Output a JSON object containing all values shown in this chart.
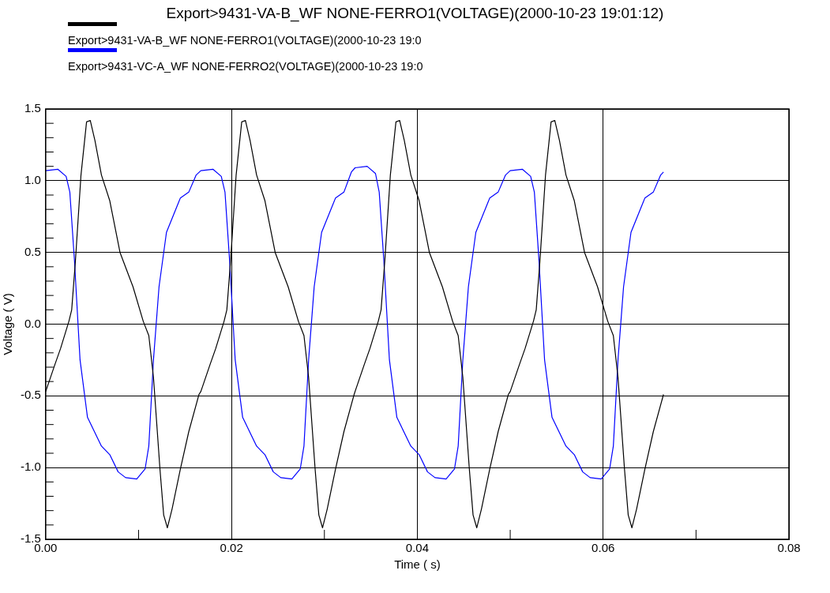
{
  "chart_data": {
    "type": "line",
    "title": "Export>9431-VA-B_WF NONE-FERRO1(VOLTAGE)(2000-10-23 19:01:12)",
    "xlabel": "Time ( s)",
    "ylabel": "Voltage ( V)",
    "xlim": [
      0,
      0.08
    ],
    "xticks": [
      {
        "value": 0,
        "label": "0.00"
      },
      {
        "value": 0.01,
        "label": null
      },
      {
        "value": 0.02,
        "label": "0.02"
      },
      {
        "value": 0.03,
        "label": null
      },
      {
        "value": 0.04,
        "label": "0.04"
      },
      {
        "value": 0.05,
        "label": null
      },
      {
        "value": 0.06,
        "label": "0.06"
      },
      {
        "value": 0.07,
        "label": null
      },
      {
        "value": 0.08,
        "label": "0.08"
      }
    ],
    "ylim": [
      -1.5,
      1.5
    ],
    "yticks": [
      {
        "value": -1.5,
        "label": "-1.5"
      },
      {
        "value": -1.4,
        "label": null
      },
      {
        "value": -1.3,
        "label": null
      },
      {
        "value": -1.2,
        "label": null
      },
      {
        "value": -1.1,
        "label": null
      },
      {
        "value": -1.0,
        "label": "-1.0"
      },
      {
        "value": -0.9,
        "label": null
      },
      {
        "value": -0.8,
        "label": null
      },
      {
        "value": -0.7,
        "label": null
      },
      {
        "value": -0.6,
        "label": null
      },
      {
        "value": -0.5,
        "label": "-0.5"
      },
      {
        "value": -0.4,
        "label": null
      },
      {
        "value": -0.3,
        "label": null
      },
      {
        "value": -0.2,
        "label": null
      },
      {
        "value": -0.1,
        "label": null
      },
      {
        "value": 0,
        "label": "0.0"
      },
      {
        "value": 0.1,
        "label": null
      },
      {
        "value": 0.2,
        "label": null
      },
      {
        "value": 0.3,
        "label": null
      },
      {
        "value": 0.4,
        "label": null
      },
      {
        "value": 0.5,
        "label": "0.5"
      },
      {
        "value": 0.6,
        "label": null
      },
      {
        "value": 0.7,
        "label": null
      },
      {
        "value": 0.8,
        "label": null
      },
      {
        "value": 0.9,
        "label": null
      },
      {
        "value": 1.0,
        "label": "1.0"
      },
      {
        "value": 1.1,
        "label": null
      },
      {
        "value": 1.2,
        "label": null
      },
      {
        "value": 1.3,
        "label": null
      },
      {
        "value": 1.4,
        "label": null
      },
      {
        "value": 1.5,
        "label": "1.5"
      }
    ],
    "grid": true,
    "legend": "top",
    "marker": "none",
    "line_style": "solid",
    "series": [
      {
        "name": "Export>9431-VA-B_WF NONE-FERRO1(VOLTAGE)(2000-10-23 19:0",
        "color": "#000000",
        "x": [
          0,
          0.001,
          0.0016,
          0.0025,
          0.0028,
          0.0032,
          0.0038,
          0.0044,
          0.0048,
          0.0053,
          0.006,
          0.0069,
          0.008,
          0.0094,
          0.0105,
          0.0111,
          0.0116,
          0.0123,
          0.0127,
          0.0131,
          0.0136,
          0.0145,
          0.0154,
          0.0165,
          0.0167,
          0.0177,
          0.0183,
          0.0192,
          0.0195,
          0.0199,
          0.0205,
          0.0211,
          0.0215,
          0.022,
          0.0227,
          0.0236,
          0.0247,
          0.0261,
          0.0272,
          0.0278,
          0.0283,
          0.029,
          0.0294,
          0.0298,
          0.0303,
          0.0312,
          0.0321,
          0.0332,
          0.0333,
          0.0343,
          0.0349,
          0.0358,
          0.0361,
          0.0365,
          0.0371,
          0.0377,
          0.0381,
          0.0386,
          0.0393,
          0.0402,
          0.0413,
          0.0427,
          0.0438,
          0.0444,
          0.0449,
          0.0456,
          0.046,
          0.0464,
          0.0469,
          0.0478,
          0.0487,
          0.0498,
          0.05,
          0.051,
          0.0516,
          0.0525,
          0.0528,
          0.0532,
          0.0538,
          0.0544,
          0.0548,
          0.0553,
          0.056,
          0.0569,
          0.058,
          0.0594,
          0.0605,
          0.0611,
          0.0616,
          0.0623,
          0.0627,
          0.0631,
          0.0636,
          0.0645,
          0.0654,
          0.0665
        ],
        "values": [
          -0.47,
          -0.28,
          -0.17,
          0.02,
          0.1,
          0.44,
          1.04,
          1.41,
          1.42,
          1.28,
          1.04,
          0.86,
          0.5,
          0.26,
          0.02,
          -0.08,
          -0.37,
          -1.01,
          -1.33,
          -1.42,
          -1.29,
          -1.01,
          -0.75,
          -0.49,
          -0.47,
          -0.28,
          -0.17,
          0.02,
          0.1,
          0.44,
          1.04,
          1.41,
          1.42,
          1.28,
          1.04,
          0.86,
          0.5,
          0.26,
          0.02,
          -0.08,
          -0.37,
          -1.01,
          -1.33,
          -1.42,
          -1.29,
          -1.01,
          -0.75,
          -0.49,
          -0.47,
          -0.28,
          -0.17,
          0.02,
          0.1,
          0.44,
          1.04,
          1.41,
          1.42,
          1.28,
          1.04,
          0.86,
          0.5,
          0.26,
          0.02,
          -0.08,
          -0.37,
          -1.01,
          -1.33,
          -1.42,
          -1.29,
          -1.01,
          -0.75,
          -0.49,
          -0.47,
          -0.28,
          -0.17,
          0.02,
          0.1,
          0.44,
          1.04,
          1.41,
          1.42,
          1.28,
          1.04,
          0.86,
          0.5,
          0.26,
          0.02,
          -0.08,
          -0.37,
          -1.01,
          -1.33,
          -1.42,
          -1.29,
          -1.01,
          -0.75,
          -0.49
        ]
      },
      {
        "name": "Export>9431-VC-A_WF NONE-FERRO2(VOLTAGE)(2000-10-23 19:0",
        "color": "#0000ff",
        "x": [
          0,
          0.0013,
          0.0022,
          0.0026,
          0.0031,
          0.0037,
          0.0045,
          0.006,
          0.0069,
          0.0078,
          0.0086,
          0.0098,
          0.0107,
          0.0111,
          0.0116,
          0.0122,
          0.013,
          0.0145,
          0.0154,
          0.0162,
          0.0167,
          0.018,
          0.0189,
          0.0193,
          0.0198,
          0.0204,
          0.0212,
          0.0227,
          0.0236,
          0.0245,
          0.0253,
          0.0265,
          0.0274,
          0.0278,
          0.0283,
          0.0289,
          0.0297,
          0.0312,
          0.0321,
          0.0329,
          0.0333,
          0.0346,
          0.0355,
          0.0359,
          0.0364,
          0.037,
          0.0378,
          0.0393,
          0.0402,
          0.0411,
          0.0419,
          0.0431,
          0.044,
          0.0444,
          0.0449,
          0.0455,
          0.0463,
          0.0478,
          0.0487,
          0.0495,
          0.05,
          0.0513,
          0.0522,
          0.0526,
          0.0531,
          0.0537,
          0.0545,
          0.056,
          0.0569,
          0.0578,
          0.0586,
          0.0598,
          0.0607,
          0.0611,
          0.0616,
          0.0622,
          0.063,
          0.0645,
          0.0654,
          0.0662,
          0.0665
        ],
        "values": [
          1.07,
          1.08,
          1.03,
          0.92,
          0.44,
          -0.25,
          -0.65,
          -0.85,
          -0.91,
          -1.03,
          -1.07,
          -1.08,
          -1.01,
          -0.85,
          -0.25,
          0.26,
          0.64,
          0.88,
          0.92,
          1.04,
          1.07,
          1.08,
          1.03,
          0.92,
          0.44,
          -0.25,
          -0.65,
          -0.85,
          -0.91,
          -1.03,
          -1.07,
          -1.08,
          -1.01,
          -0.85,
          -0.25,
          0.26,
          0.64,
          0.88,
          0.92,
          1.06,
          1.09,
          1.1,
          1.05,
          0.92,
          0.44,
          -0.25,
          -0.65,
          -0.85,
          -0.91,
          -1.03,
          -1.07,
          -1.08,
          -1.01,
          -0.85,
          -0.25,
          0.26,
          0.64,
          0.88,
          0.92,
          1.04,
          1.07,
          1.08,
          1.03,
          0.92,
          0.44,
          -0.25,
          -0.65,
          -0.85,
          -0.91,
          -1.03,
          -1.07,
          -1.08,
          -1.01,
          -0.85,
          -0.25,
          0.26,
          0.64,
          0.88,
          0.92,
          1.04,
          1.06
        ]
      }
    ]
  }
}
